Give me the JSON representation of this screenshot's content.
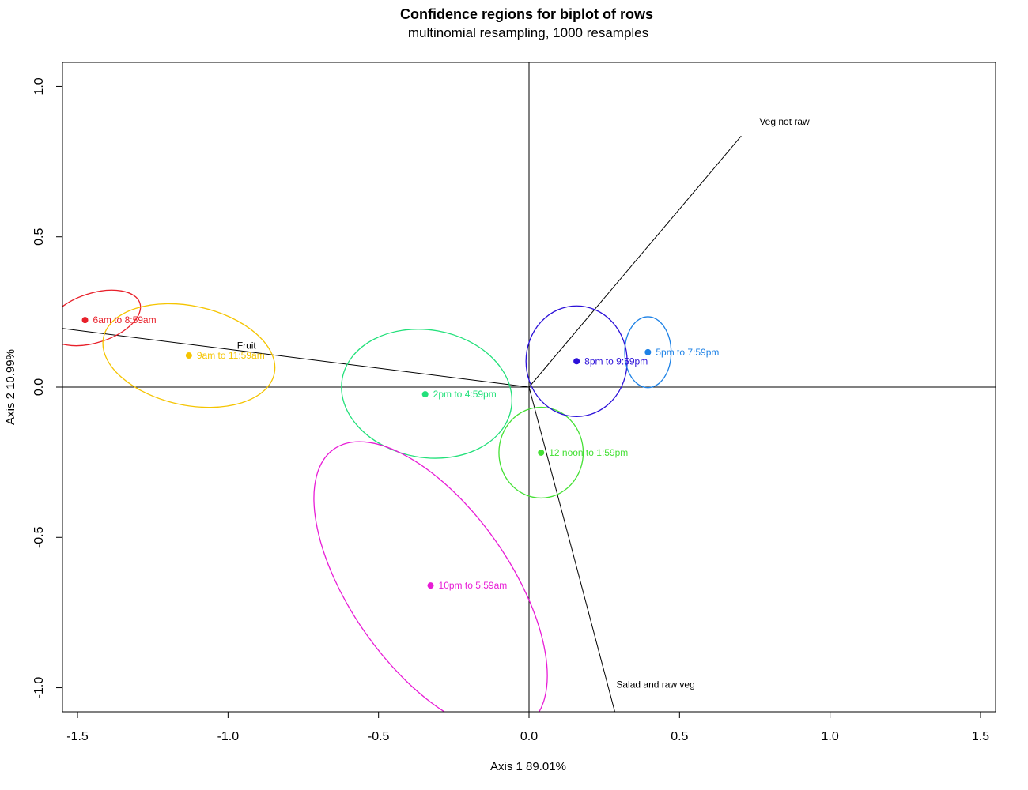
{
  "chart_data": {
    "type": "scatter",
    "title": "Confidence regions for biplot of rows",
    "subtitle": "multinomial resampling,  1000 resamples",
    "xlabel": "Axis 1    89.01%",
    "ylabel": "Axis 2    10.99%",
    "xlim": [
      -1.55,
      1.55
    ],
    "ylim": [
      -1.08,
      1.08
    ],
    "xticks": [
      {
        "value": -1.5,
        "label": "-1.5"
      },
      {
        "value": -1.0,
        "label": "-1.0"
      },
      {
        "value": -0.5,
        "label": "-0.5"
      },
      {
        "value": 0.0,
        "label": "0.0"
      },
      {
        "value": 0.5,
        "label": "0.5"
      },
      {
        "value": 1.0,
        "label": "1.0"
      },
      {
        "value": 1.5,
        "label": "1.5"
      }
    ],
    "yticks": [
      {
        "value": -1.0,
        "label": "-1.0"
      },
      {
        "value": -0.5,
        "label": "-0.5"
      },
      {
        "value": 0.0,
        "label": "0.0"
      },
      {
        "value": 0.5,
        "label": "0.5"
      },
      {
        "value": 1.0,
        "label": "1.0"
      }
    ],
    "grid": false,
    "points": [
      {
        "label": "6am to 8:59am",
        "x": -1.475,
        "y": 0.223,
        "color": "#e8202a",
        "ellipse": {
          "cx": -1.445,
          "cy": 0.23,
          "rx": 0.16,
          "ry": 0.082,
          "angle": 18
        }
      },
      {
        "label": "9am to 11:59am",
        "x": -1.13,
        "y": 0.105,
        "color": "#f5c400",
        "ellipse": {
          "cx": -1.13,
          "cy": 0.105,
          "rx": 0.29,
          "ry": 0.165,
          "angle": -12
        }
      },
      {
        "label": "2pm to 4:59pm",
        "x": -0.345,
        "y": -0.024,
        "color": "#22e07a",
        "ellipse": {
          "cx": -0.34,
          "cy": -0.022,
          "rx": 0.285,
          "ry": 0.212,
          "angle": -10
        }
      },
      {
        "label": "12 noon to 1:59pm",
        "x": 0.04,
        "y": -0.218,
        "color": "#45e035",
        "ellipse": {
          "cx": 0.04,
          "cy": -0.218,
          "rx": 0.14,
          "ry": 0.151,
          "angle": 0
        }
      },
      {
        "label": "8pm to 9:59pm",
        "x": 0.158,
        "y": 0.086,
        "color": "#2b10d8",
        "ellipse": {
          "cx": 0.158,
          "cy": 0.086,
          "rx": 0.168,
          "ry": 0.184,
          "angle": 0
        }
      },
      {
        "label": "5pm to 7:59pm",
        "x": 0.395,
        "y": 0.116,
        "color": "#1e82e6",
        "ellipse": {
          "cx": 0.395,
          "cy": 0.116,
          "rx": 0.077,
          "ry": 0.118,
          "angle": 0
        }
      },
      {
        "label": "10pm to 5:59am",
        "x": -0.327,
        "y": -0.66,
        "color": "#e81cd6",
        "ellipse": {
          "cx": -0.327,
          "cy": -0.665,
          "rx": 0.56,
          "ry": 0.265,
          "angle": -55
        }
      }
    ],
    "arrows": [
      {
        "label": "Veg not raw",
        "x": 0.705,
        "y": 0.835
      },
      {
        "label": "Fruit",
        "x": -1.55,
        "y": 0.195,
        "label_x": -0.97,
        "label_y": 0.128
      },
      {
        "label": "Salad and raw veg",
        "x": 0.285,
        "y": -1.08,
        "label_x": 0.29,
        "label_y": -1.0
      }
    ],
    "axis_lines": {
      "x0": 0,
      "y0": 0,
      "color": "#000000"
    }
  }
}
